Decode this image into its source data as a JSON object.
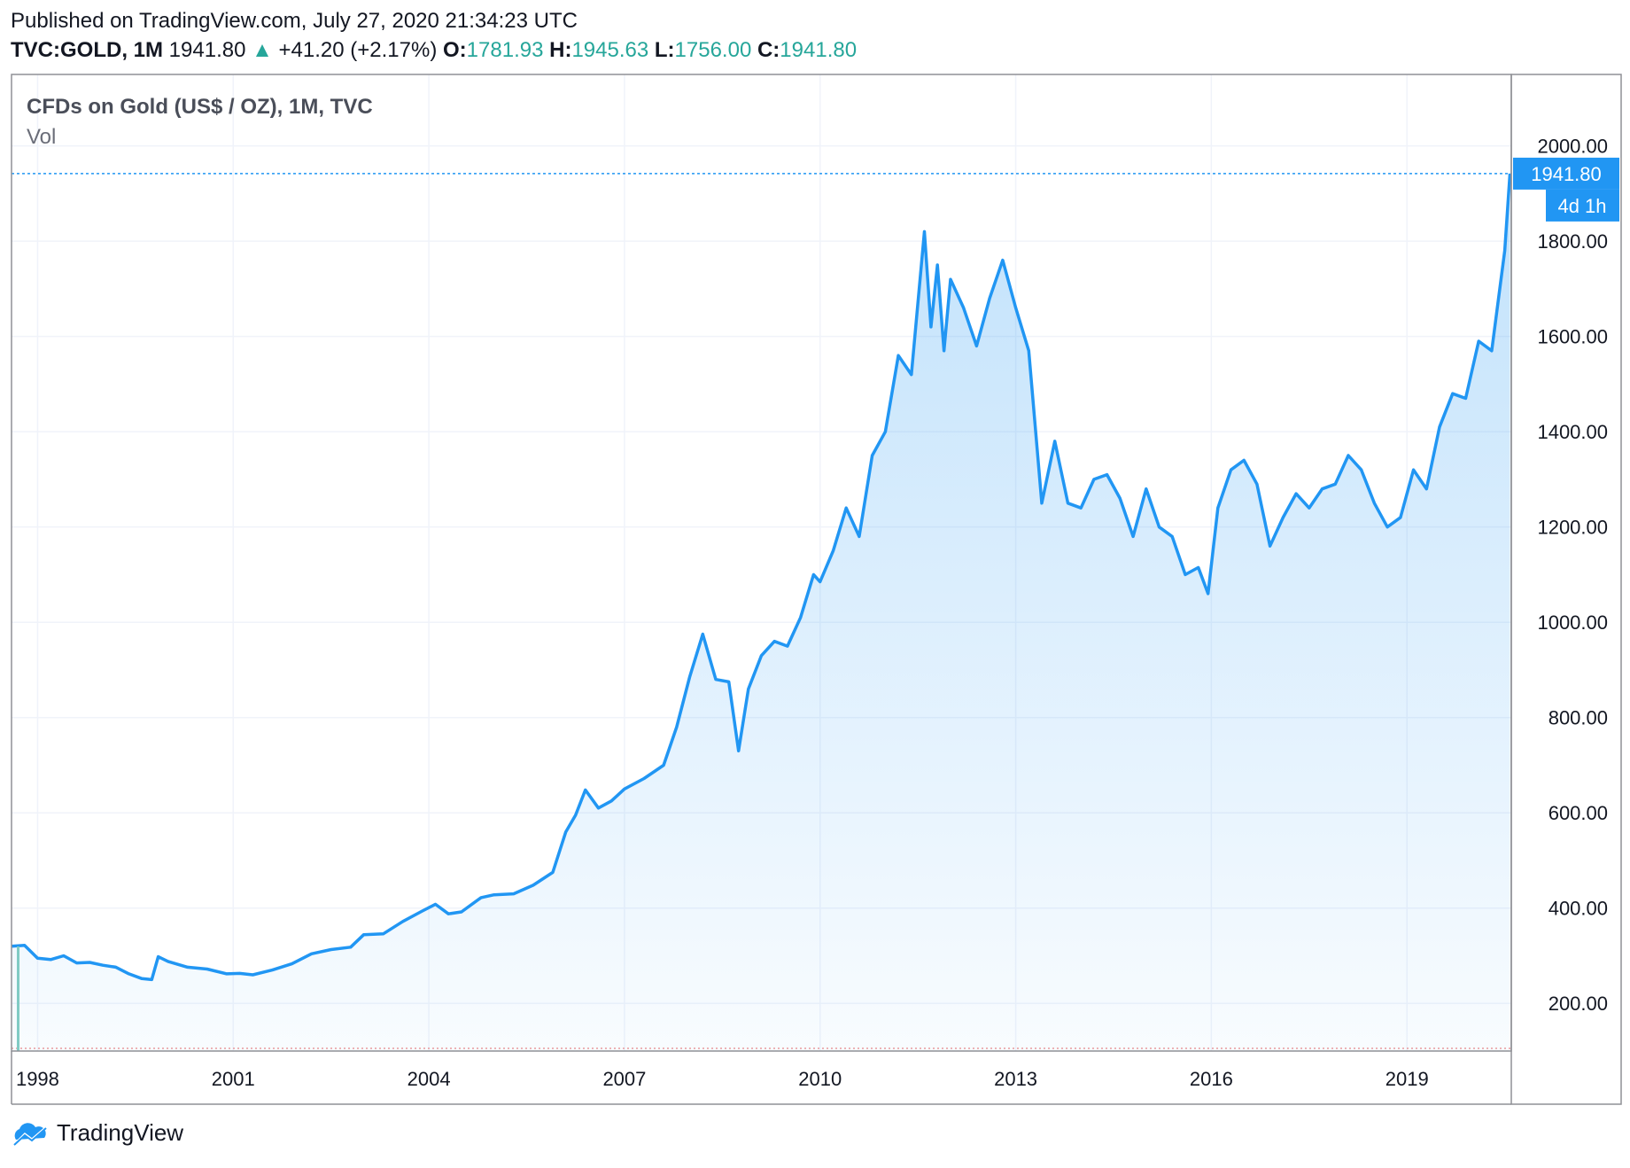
{
  "header": {
    "published": "Published on TradingView.com, July 27, 2020 21:34:23 UTC",
    "symbol_interval": "TVC:GOLD, 1M",
    "last": "1941.80",
    "change": "+41.20 (+2.17%)",
    "o_label": "O:",
    "o_value": "1781.93",
    "h_label": "H:",
    "h_value": "1945.63",
    "l_label": "L:",
    "l_value": "1756.00",
    "c_label": "C:",
    "c_value": "1941.80"
  },
  "legend": {
    "series_title": "CFDs on Gold (US$ / OZ), 1M, TVC",
    "volume_label": "Vol"
  },
  "price_badge": {
    "value": "1941.80",
    "countdown": "4d 1h"
  },
  "footer": {
    "brand": "TradingView"
  },
  "colors": {
    "line": "#2196f3",
    "badge": "#2196f3",
    "grid": "#f0f3fa",
    "axis_text": "#131722",
    "up": "#26a69a",
    "volume": "#80cbc4"
  },
  "chart_data": {
    "type": "area",
    "title": "CFDs on Gold (US$ / OZ), 1M, TVC",
    "xlabel": "",
    "ylabel": "",
    "x_range": [
      1997.6,
      2020.6
    ],
    "ylim": [
      100,
      2150
    ],
    "yticks": [
      200,
      400,
      600,
      800,
      1000,
      1200,
      1400,
      1600,
      1800,
      2000
    ],
    "ytick_labels": [
      "200.00",
      "400.00",
      "600.00",
      "800.00",
      "1000.00",
      "1200.00",
      "1400.00",
      "1600.00",
      "1800.00",
      "2000.00"
    ],
    "xticks": [
      1998,
      2001,
      2004,
      2007,
      2010,
      2013,
      2016,
      2019
    ],
    "xtick_labels": [
      "1998",
      "2001",
      "2004",
      "2007",
      "2010",
      "2013",
      "2016",
      "2019"
    ],
    "grid": true,
    "last_value": 1941.8,
    "series": [
      {
        "x": [
          1997.6,
          1997.8,
          1998.0,
          1998.2,
          1998.4,
          1998.6,
          1998.8,
          1999.0,
          1999.2,
          1999.4,
          1999.6,
          1999.75,
          1999.85,
          2000.0,
          2000.3,
          2000.6,
          2000.9,
          2001.1,
          2001.3,
          2001.6,
          2001.9,
          2002.2,
          2002.5,
          2002.8,
          2003.0,
          2003.3,
          2003.6,
          2003.9,
          2004.1,
          2004.3,
          2004.5,
          2004.8,
          2005.0,
          2005.3,
          2005.6,
          2005.9,
          2006.1,
          2006.25,
          2006.4,
          2006.6,
          2006.8,
          2007.0,
          2007.3,
          2007.6,
          2007.8,
          2008.0,
          2008.2,
          2008.4,
          2008.6,
          2008.75,
          2008.9,
          2009.1,
          2009.3,
          2009.5,
          2009.7,
          2009.9,
          2010.0,
          2010.2,
          2010.4,
          2010.6,
          2010.8,
          2011.0,
          2011.2,
          2011.4,
          2011.6,
          2011.7,
          2011.8,
          2011.9,
          2012.0,
          2012.2,
          2012.4,
          2012.6,
          2012.8,
          2013.0,
          2013.2,
          2013.4,
          2013.6,
          2013.8,
          2014.0,
          2014.2,
          2014.4,
          2014.6,
          2014.8,
          2015.0,
          2015.2,
          2015.4,
          2015.6,
          2015.8,
          2015.95,
          2016.1,
          2016.3,
          2016.5,
          2016.7,
          2016.9,
          2017.1,
          2017.3,
          2017.5,
          2017.7,
          2017.9,
          2018.1,
          2018.3,
          2018.5,
          2018.7,
          2018.9,
          2019.1,
          2019.3,
          2019.5,
          2019.7,
          2019.9,
          2020.1,
          2020.3,
          2020.5,
          2020.58
        ],
        "values": [
          320,
          322,
          295,
          292,
          300,
          285,
          286,
          280,
          276,
          262,
          252,
          250,
          298,
          288,
          276,
          272,
          262,
          263,
          260,
          270,
          283,
          304,
          313,
          318,
          344,
          346,
          372,
          394,
          408,
          388,
          392,
          422,
          428,
          430,
          448,
          475,
          560,
          595,
          648,
          610,
          625,
          650,
          672,
          700,
          780,
          885,
          975,
          880,
          875,
          730,
          860,
          930,
          960,
          950,
          1010,
          1100,
          1085,
          1150,
          1240,
          1180,
          1350,
          1400,
          1560,
          1520,
          1820,
          1620,
          1750,
          1570,
          1720,
          1660,
          1580,
          1680,
          1760,
          1660,
          1570,
          1250,
          1380,
          1250,
          1240,
          1300,
          1310,
          1260,
          1180,
          1280,
          1200,
          1180,
          1100,
          1115,
          1060,
          1240,
          1320,
          1340,
          1290,
          1160,
          1220,
          1270,
          1240,
          1280,
          1290,
          1350,
          1320,
          1250,
          1200,
          1220,
          1320,
          1280,
          1410,
          1480,
          1470,
          1590,
          1570,
          1780,
          1941.8
        ]
      }
    ]
  }
}
